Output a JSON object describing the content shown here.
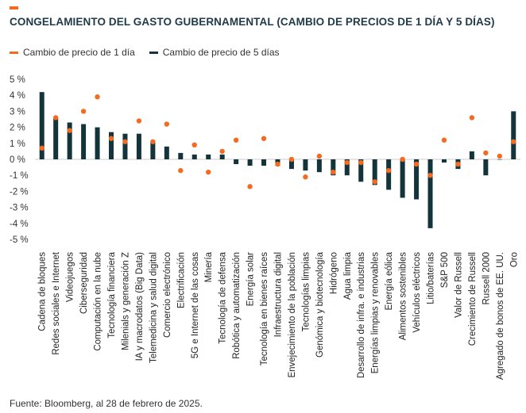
{
  "title": "CONGELAMIENTO DEL GASTO GUBERNAMENTAL (CAMBIO DE PRECIOS DE 1 DÍA Y 5 DÍAS)",
  "legend": {
    "series1_label": "Cambio de precio de 1 día",
    "series2_label": "Cambio de precio de 5 días"
  },
  "footer": "Fuente: Bloomberg, al 28 de febrero de 2025.",
  "colors": {
    "one_day": "#f26b21",
    "five_day": "#13343b",
    "accent": "#f26b21"
  },
  "chart_data": {
    "type": "bar",
    "title": "CONGELAMIENTO DEL GASTO GUBERNAMENTAL (CAMBIO DE PRECIOS DE 1 DÍA Y 5 DÍAS)",
    "ylim": [
      -5,
      5
    ],
    "yticks": [
      "-5 %",
      "-4 %",
      "-3 %",
      "-2 %",
      "-1 %",
      "0 %",
      "1 %",
      "2 %",
      "3 %",
      "4 %",
      "5 %"
    ],
    "grid": false,
    "legend_position": "top-left",
    "categories": [
      "Cadena de bloques",
      "Redes sociales e Internet",
      "Videojuegos",
      "Ciberseguridad",
      "Computación en la nube",
      "Tecnología financiera",
      "Milenials y generación Z",
      "IA y macrodatos (Big Data)",
      "Telemedicina y salud digital",
      "Comercio electrónico",
      "Electrificación",
      "5G e Internet de las cosas",
      "Minería",
      "Tecnología de defensa",
      "Robótica y automatización",
      "Energía solar",
      "Tecnología en bienes raíces",
      "Infraestructura digital",
      "Envejecimiento de la población",
      "Tecnologías limpias",
      "Genómica y biotecnología",
      "Hidrógeno",
      "Agua limpia",
      "Desarrollo de infra. e industrias",
      "Energías limpias y renovables",
      "Energía eólica",
      "Alimentos sostenibles",
      "Vehículos eléctricos",
      "Litio/baterías",
      "S&P 500",
      "Valor de Russell",
      "Crecimiento de Russell",
      "Russell 2000",
      "Agregado de bonos de EE. UU.",
      "Oro"
    ],
    "series": [
      {
        "name": "Cambio de precio de 1 día",
        "type": "scatter",
        "values": [
          0.7,
          2.6,
          1.8,
          3.0,
          3.9,
          1.3,
          1.1,
          2.4,
          1.1,
          2.2,
          -0.7,
          0.9,
          -0.8,
          0.5,
          1.2,
          -1.7,
          1.3,
          -0.3,
          0.0,
          -1.1,
          0.2,
          -0.8,
          -0.2,
          -0.2,
          -1.4,
          -0.7,
          0.0,
          -0.3,
          -1.0,
          1.2,
          -0.3,
          2.6,
          0.4,
          0.2,
          1.1
        ]
      },
      {
        "name": "Cambio de precio de 5 días",
        "type": "bar",
        "values": [
          4.2,
          2.6,
          2.3,
          2.2,
          2.0,
          1.7,
          1.6,
          1.6,
          1.1,
          0.8,
          0.4,
          0.3,
          0.3,
          0.3,
          -0.3,
          -0.4,
          -0.4,
          -0.4,
          -0.6,
          -0.7,
          -0.8,
          -1.0,
          -1.0,
          -1.4,
          -1.6,
          -1.9,
          -2.4,
          -2.5,
          -4.3,
          -0.2,
          -0.6,
          0.5,
          -1.0,
          0.0,
          3.0
        ]
      }
    ]
  }
}
